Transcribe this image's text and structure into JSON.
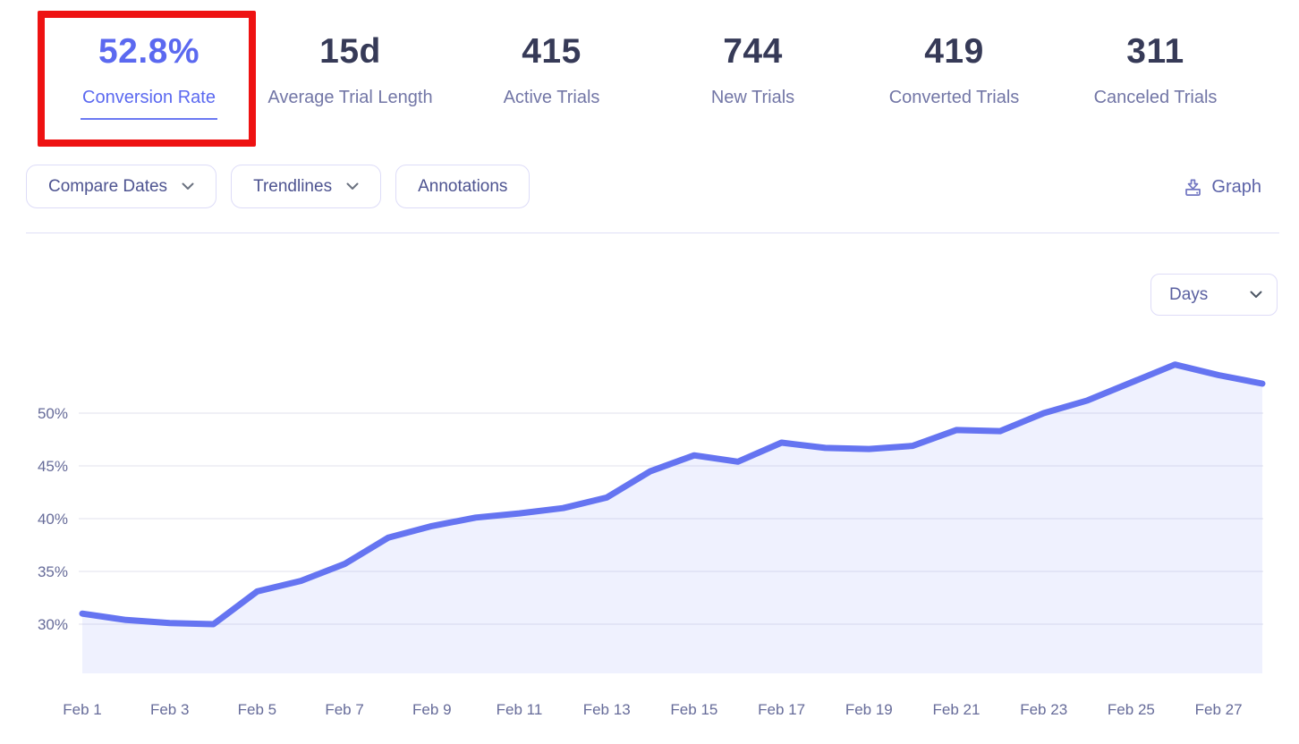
{
  "stats": {
    "items": [
      {
        "value": "52.8%",
        "label": "Conversion Rate",
        "active": true
      },
      {
        "value": "15d",
        "label": "Average Trial Length"
      },
      {
        "value": "415",
        "label": "Active Trials"
      },
      {
        "value": "744",
        "label": "New Trials"
      },
      {
        "value": "419",
        "label": "Converted Trials"
      },
      {
        "value": "311",
        "label": "Canceled Trials"
      }
    ]
  },
  "toolbar": {
    "compare_dates_label": "Compare Dates",
    "trendlines_label": "Trendlines",
    "annotations_label": "Annotations",
    "graph_label": "Graph",
    "graph_icon": "download-icon"
  },
  "chart_controls": {
    "interval_selected": "Days"
  },
  "colors": {
    "accent_blue": "#5b69f0",
    "line_color": "#6574f1",
    "area_fill": "rgba(101,116,241,0.10)",
    "gridline": "#ececf4",
    "stat_value_dark": "#363a57",
    "stat_label_gray": "#7276a6",
    "annotation_red": "#ee1212"
  },
  "chart_data": {
    "type": "area",
    "title": "Conversion Rate",
    "dates": [
      "Feb 1",
      "Feb 2",
      "Feb 3",
      "Feb 4",
      "Feb 5",
      "Feb 6",
      "Feb 7",
      "Feb 8",
      "Feb 9",
      "Feb 10",
      "Feb 11",
      "Feb 12",
      "Feb 13",
      "Feb 14",
      "Feb 15",
      "Feb 16",
      "Feb 17",
      "Feb 18",
      "Feb 19",
      "Feb 20",
      "Feb 21",
      "Feb 22",
      "Feb 23",
      "Feb 24",
      "Feb 25",
      "Feb 26",
      "Feb 27",
      "Feb 28"
    ],
    "values": [
      31.0,
      30.4,
      30.1,
      30.0,
      33.1,
      34.1,
      35.7,
      38.2,
      39.3,
      40.1,
      40.5,
      41.0,
      42.0,
      44.5,
      46.0,
      45.4,
      47.2,
      46.7,
      46.6,
      46.9,
      48.4,
      48.3,
      50.0,
      51.2,
      52.9,
      54.6,
      53.6,
      52.8
    ],
    "unit": "%",
    "y_ticks": [
      30,
      35,
      40,
      45,
      50
    ],
    "y_tick_suffix": "%",
    "x_tick_labels": [
      "Feb 1",
      "Feb 3",
      "Feb 5",
      "Feb 7",
      "Feb 9",
      "Feb 11",
      "Feb 13",
      "Feb 15",
      "Feb 17",
      "Feb 19",
      "Feb 21",
      "Feb 23",
      "Feb 25",
      "Feb 27"
    ],
    "x_tick_interval": 2,
    "ylim": [
      25.3,
      57.5
    ],
    "grid": "horizontal",
    "legend": "none"
  }
}
